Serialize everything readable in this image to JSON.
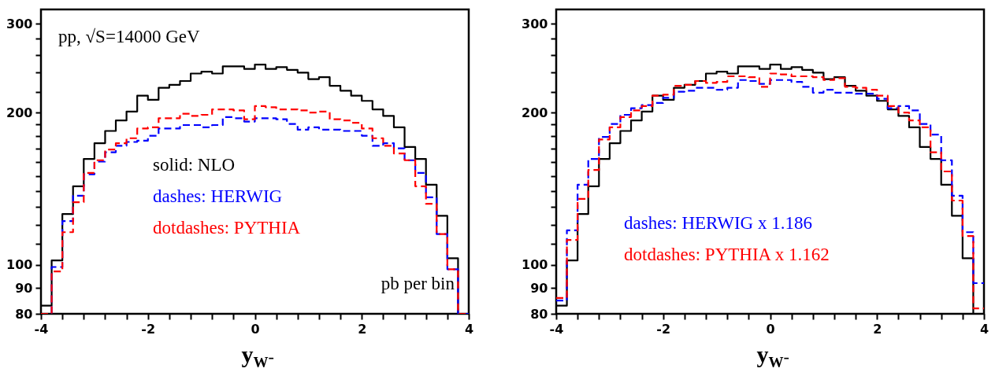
{
  "chart_data": [
    {
      "type": "histogram",
      "xlabel": "y$_{W⁻}$",
      "legend": "bottom",
      "grid": false,
      "log": true,
      "annotations": [
        "pp, √S=14000 GeV",
        "pb per bin"
      ],
      "bins": [
        -4,
        -3.8,
        -3.6,
        -3.4,
        -3.2,
        -3,
        -2.8,
        -2.6,
        -2.4,
        -2.2,
        -2,
        -1.8,
        -1.6,
        -1.4,
        -1.2,
        -1,
        -0.8,
        -0.6,
        -0.4,
        -0.2,
        0,
        0.2,
        0.4,
        0.6,
        0.8,
        1,
        1.2,
        1.4,
        1.6,
        1.8,
        2,
        2.2,
        2.4,
        2.6,
        2.8,
        3,
        3.2,
        3.4,
        3.6,
        3.8,
        4
      ],
      "series": [
        {
          "name": "solid: NLO",
          "color": "#000000",
          "line_style": "solid",
          "values": [
            83,
            102,
            126,
            143,
            162,
            174,
            184,
            193,
            201,
            216,
            212,
            224,
            227,
            231,
            239,
            241,
            239,
            247,
            247,
            244,
            249,
            244,
            246,
            243,
            240,
            233,
            235,
            226,
            221,
            216,
            211,
            203,
            197,
            187,
            171,
            162,
            144,
            125,
            103,
            80
          ]
        },
        {
          "name": "dashes: HERWIG",
          "color": "#0000ff",
          "line_style": "dashed",
          "values": [
            80,
            99,
            122,
            137,
            151,
            160,
            167,
            172,
            175,
            176,
            180,
            186,
            186,
            189,
            189,
            187,
            189,
            196,
            195,
            192,
            195,
            195,
            194,
            190,
            185,
            187,
            185,
            185,
            184,
            184,
            180,
            172,
            174,
            170,
            161,
            152,
            136,
            115,
            98,
            80
          ]
        },
        {
          "name": "dotdashes: PYTHIA",
          "color": "#ff0000",
          "line_style": "dashed",
          "values": [
            80,
            97,
            116,
            133,
            152,
            161,
            169,
            174,
            178,
            186,
            187,
            195,
            195,
            199,
            197,
            198,
            203,
            203,
            202,
            194,
            206,
            205,
            203,
            203,
            202,
            200,
            201,
            194,
            193,
            191,
            186,
            178,
            172,
            166,
            161,
            143,
            132,
            115,
            98,
            80
          ]
        }
      ],
      "xlim": [
        -4,
        4
      ],
      "xticks": [
        -4,
        {
          "value": -3.6,
          "label": null
        },
        {
          "value": -3.2,
          "label": null
        },
        {
          "value": -2.8,
          "label": null
        },
        {
          "value": -2.4,
          "label": null
        },
        -2,
        {
          "value": -1.6,
          "label": null
        },
        {
          "value": -1.2,
          "label": null
        },
        {
          "value": -0.8,
          "label": null
        },
        {
          "value": -0.4,
          "label": null
        },
        0,
        {
          "value": 0.4,
          "label": null
        },
        {
          "value": 0.8,
          "label": null
        },
        {
          "value": 1.2,
          "label": null
        },
        {
          "value": 1.6,
          "label": null
        },
        2,
        {
          "value": 2.4,
          "label": null
        },
        {
          "value": 2.8,
          "label": null
        },
        {
          "value": 3.2,
          "label": null
        },
        {
          "value": 3.6,
          "label": null
        },
        4
      ],
      "ylim": [
        80,
        320
      ],
      "yticks": [
        80,
        90,
        100,
        {
          "value": 110,
          "label": null
        },
        {
          "value": 120,
          "label": null
        },
        {
          "value": 130,
          "label": null
        },
        {
          "value": 140,
          "label": null
        },
        {
          "value": 150,
          "label": null
        },
        {
          "value": 160,
          "label": null
        },
        {
          "value": 170,
          "label": null
        },
        {
          "value": 180,
          "label": null
        },
        {
          "value": 190,
          "label": null
        },
        200,
        {
          "value": 220,
          "label": null
        },
        {
          "value": 240,
          "label": null
        },
        {
          "value": 260,
          "label": null
        },
        {
          "value": 280,
          "label": null
        },
        300
      ]
    },
    {
      "type": "histogram",
      "xlabel": "y$_{W⁻}$",
      "legend": "bottom",
      "grid": false,
      "log": true,
      "bins": [
        -4,
        -3.8,
        -3.6,
        -3.4,
        -3.2,
        -3,
        -2.8,
        -2.6,
        -2.4,
        -2.2,
        -2,
        -1.8,
        -1.6,
        -1.4,
        -1.2,
        -1,
        -0.8,
        -0.6,
        -0.4,
        -0.2,
        0,
        0.2,
        0.4,
        0.6,
        0.8,
        1,
        1.2,
        1.4,
        1.6,
        1.8,
        2,
        2.2,
        2.4,
        2.6,
        2.8,
        3,
        3.2,
        3.4,
        3.6,
        3.8,
        4
      ],
      "series": [
        {
          "color": "#000000",
          "line_style": "solid",
          "values": [
            83,
            102,
            126,
            143,
            162,
            174,
            184,
            193,
            201,
            216,
            212,
            224,
            227,
            231,
            239,
            241,
            239,
            247,
            247,
            244,
            249,
            244,
            246,
            243,
            240,
            233,
            235,
            226,
            221,
            216,
            211,
            203,
            197,
            187,
            171,
            162,
            144,
            125,
            103,
            80
          ]
        },
        {
          "name": "dashes: HERWIG x 1.186",
          "color": "#0000ff",
          "line_style": "dashed",
          "values": [
            85,
            117,
            144,
            162,
            179,
            190,
            198,
            204,
            207,
            209,
            214,
            220,
            221,
            224,
            224,
            222,
            224,
            232,
            231,
            228,
            232,
            232,
            230,
            225,
            219,
            222,
            219,
            219,
            218,
            218,
            213,
            204,
            206,
            202,
            190,
            181,
            161,
            137,
            116,
            92
          ]
        },
        {
          "name": "dotdashes: PYTHIA x 1.162",
          "color": "#ff0000",
          "line_style": "dashed",
          "values": [
            86,
            112,
            135,
            154,
            177,
            187,
            196,
            202,
            206,
            216,
            217,
            226,
            227,
            231,
            229,
            230,
            236,
            236,
            235,
            225,
            239,
            238,
            236,
            236,
            235,
            232,
            234,
            225,
            224,
            222,
            216,
            206,
            200,
            193,
            187,
            167,
            153,
            134,
            114,
            82
          ]
        }
      ],
      "xlim": [
        -4,
        4
      ],
      "xticks": [
        -4,
        {
          "value": -3.6,
          "label": null
        },
        {
          "value": -3.2,
          "label": null
        },
        {
          "value": -2.8,
          "label": null
        },
        {
          "value": -2.4,
          "label": null
        },
        -2,
        {
          "value": -1.6,
          "label": null
        },
        {
          "value": -1.2,
          "label": null
        },
        {
          "value": -0.8,
          "label": null
        },
        {
          "value": -0.4,
          "label": null
        },
        0,
        {
          "value": 0.4,
          "label": null
        },
        {
          "value": 0.8,
          "label": null
        },
        {
          "value": 1.2,
          "label": null
        },
        {
          "value": 1.6,
          "label": null
        },
        2,
        {
          "value": 2.4,
          "label": null
        },
        {
          "value": 2.8,
          "label": null
        },
        {
          "value": 3.2,
          "label": null
        },
        {
          "value": 3.6,
          "label": null
        },
        4
      ],
      "ylim": [
        80,
        320
      ],
      "yticks": [
        80,
        90,
        100,
        {
          "value": 110,
          "label": null
        },
        {
          "value": 120,
          "label": null
        },
        {
          "value": 130,
          "label": null
        },
        {
          "value": 140,
          "label": null
        },
        {
          "value": 150,
          "label": null
        },
        {
          "value": 160,
          "label": null
        },
        {
          "value": 170,
          "label": null
        },
        {
          "value": 180,
          "label": null
        },
        {
          "value": 190,
          "label": null
        },
        200,
        {
          "value": 220,
          "label": null
        },
        {
          "value": 240,
          "label": null
        },
        {
          "value": 260,
          "label": null
        },
        {
          "value": 280,
          "label": null
        },
        300
      ]
    }
  ]
}
